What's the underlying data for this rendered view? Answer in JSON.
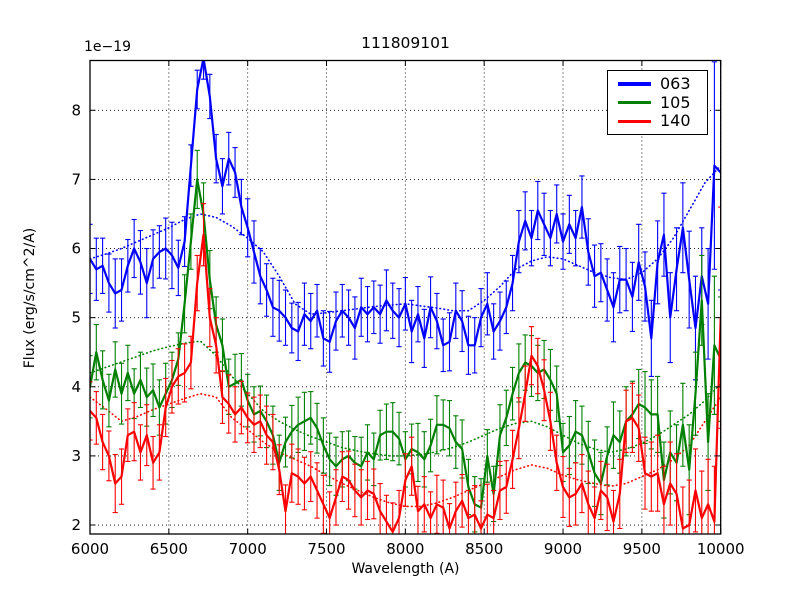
{
  "figure": {
    "title": "111809101",
    "xlabel": "Wavelength (A)",
    "ylabel": "Flux (erg/s/cm^2/A)",
    "offset_label": "1e−19",
    "background": "#ffffff"
  },
  "legend": {
    "position": "upper right",
    "entries": [
      {
        "label": "063",
        "color": "#0000ff"
      },
      {
        "label": "105",
        "color": "#008000"
      },
      {
        "label": "140",
        "color": "#ff0000"
      }
    ]
  },
  "chart_data": {
    "type": "line",
    "title": "111809101",
    "xlabel": "Wavelength (A)",
    "ylabel": "Flux (erg/s/cm^2/A)",
    "y_offset_factor": "1e-19",
    "xlim": [
      6000,
      10000
    ],
    "ylim": [
      1.87,
      8.72
    ],
    "xticks": [
      6000,
      6500,
      7000,
      7500,
      8000,
      8500,
      9000,
      9500,
      10000
    ],
    "yticks": [
      2,
      3,
      4,
      5,
      6,
      7,
      8
    ],
    "grid": true,
    "grid_style": "dotted",
    "series": [
      {
        "name": "063",
        "color": "#0000ff",
        "style": "solid",
        "x_start": 6000,
        "x_step": 40,
        "values": [
          5.85,
          5.7,
          5.75,
          5.5,
          5.35,
          5.4,
          5.75,
          6.0,
          5.8,
          5.5,
          5.85,
          5.95,
          6.0,
          5.9,
          5.72,
          6.1,
          7.2,
          8.3,
          8.75,
          8.2,
          7.3,
          6.9,
          7.3,
          7.1,
          6.6,
          6.3,
          5.95,
          5.6,
          5.4,
          5.15,
          5.1,
          5.0,
          4.85,
          4.8,
          5.05,
          4.95,
          5.1,
          4.7,
          4.65,
          4.95,
          5.1,
          5.0,
          4.85,
          5.15,
          5.05,
          5.15,
          5.05,
          5.25,
          5.1,
          5.0,
          5.2,
          4.8,
          5.05,
          4.7,
          5.15,
          4.95,
          4.6,
          4.65,
          5.1,
          4.95,
          4.6,
          4.6,
          5.0,
          5.2,
          4.8,
          4.95,
          5.15,
          5.5,
          6.1,
          6.4,
          6.15,
          6.55,
          6.35,
          6.15,
          6.5,
          6.1,
          6.35,
          6.15,
          6.6,
          5.95,
          5.6,
          5.65,
          5.4,
          5.15,
          5.55,
          5.55,
          5.3,
          5.8,
          5.45,
          4.7,
          5.8,
          6.2,
          5.0,
          5.7,
          6.3,
          5.55,
          4.85,
          5.6,
          5.2,
          7.2,
          7.1
        ],
        "err": [
          0.5,
          0.45,
          0.4,
          0.42,
          0.5,
          0.45,
          0.38,
          0.42,
          0.46,
          0.5,
          0.42,
          0.38,
          0.44,
          0.48,
          0.4,
          0.36,
          0.3,
          0.28,
          0.3,
          0.32,
          0.35,
          0.4,
          0.38,
          0.36,
          0.4,
          0.42,
          0.45,
          0.4,
          0.38,
          0.42,
          0.44,
          0.4,
          0.36,
          0.42,
          0.45,
          0.4,
          0.38,
          0.4,
          0.44,
          0.42,
          0.38,
          0.4,
          0.45,
          0.42,
          0.4,
          0.38,
          0.42,
          0.44,
          0.4,
          0.42,
          0.38,
          0.45,
          0.4,
          0.42,
          0.44,
          0.4,
          0.38,
          0.42,
          0.4,
          0.44,
          0.42,
          0.4,
          0.42,
          0.45,
          0.4,
          0.42,
          0.38,
          0.4,
          0.45,
          0.42,
          0.4,
          0.42,
          0.45,
          0.4,
          0.42,
          0.4,
          0.42,
          0.4,
          0.45,
          0.48,
          0.45,
          0.42,
          0.45,
          0.5,
          0.48,
          0.45,
          0.5,
          0.55,
          0.5,
          0.55,
          0.6,
          0.6,
          0.65,
          0.6,
          0.65,
          0.7,
          0.75,
          0.7,
          0.8,
          1.5,
          1.7
        ]
      },
      {
        "name": "105",
        "color": "#008000",
        "style": "solid",
        "x_start": 6000,
        "x_step": 40,
        "values": [
          4.0,
          4.5,
          4.1,
          3.8,
          4.25,
          3.9,
          4.2,
          3.9,
          4.1,
          3.85,
          3.95,
          3.7,
          3.9,
          4.1,
          4.4,
          5.2,
          6.1,
          7.0,
          6.5,
          5.55,
          4.9,
          4.6,
          4.0,
          4.05,
          4.1,
          3.8,
          3.6,
          3.65,
          3.5,
          3.3,
          2.9,
          3.2,
          3.35,
          3.45,
          3.5,
          3.55,
          3.4,
          3.15,
          2.95,
          2.85,
          2.95,
          3.0,
          2.9,
          2.85,
          3.05,
          2.95,
          3.3,
          3.35,
          3.35,
          3.25,
          2.95,
          3.1,
          3.05,
          2.95,
          3.15,
          3.45,
          3.45,
          3.4,
          3.2,
          3.1,
          2.55,
          2.3,
          2.25,
          3.0,
          2.45,
          3.3,
          3.55,
          3.9,
          4.2,
          4.35,
          4.3,
          4.2,
          4.25,
          4.1,
          3.9,
          3.05,
          3.15,
          3.35,
          3.3,
          3.05,
          2.75,
          2.6,
          3.0,
          3.3,
          3.2,
          3.5,
          3.6,
          3.75,
          3.7,
          3.6,
          3.6,
          2.65,
          3.05,
          2.9,
          3.45,
          2.8,
          3.9,
          5.25,
          3.2,
          4.6,
          4.4
        ],
        "err": [
          0.45,
          0.4,
          0.42,
          0.38,
          0.4,
          0.44,
          0.4,
          0.36,
          0.4,
          0.42,
          0.38,
          0.4,
          0.44,
          0.4,
          0.38,
          0.42,
          0.4,
          0.42,
          0.45,
          0.42,
          0.4,
          0.38,
          0.4,
          0.42,
          0.38,
          0.38,
          0.4,
          0.36,
          0.38,
          0.42,
          0.4,
          0.36,
          0.38,
          0.4,
          0.42,
          0.38,
          0.36,
          0.4,
          0.38,
          0.42,
          0.4,
          0.36,
          0.38,
          0.42,
          0.4,
          0.38,
          0.36,
          0.4,
          0.42,
          0.38,
          0.4,
          0.36,
          0.42,
          0.4,
          0.38,
          0.42,
          0.36,
          0.4,
          0.38,
          0.42,
          0.4,
          0.4,
          0.42,
          0.38,
          0.4,
          0.44,
          0.4,
          0.38,
          0.42,
          0.4,
          0.44,
          0.4,
          0.42,
          0.44,
          0.4,
          0.42,
          0.42,
          0.45,
          0.42,
          0.45,
          0.48,
          0.45,
          0.42,
          0.48,
          0.45,
          0.5,
          0.48,
          0.5,
          0.52,
          0.5,
          0.55,
          0.55,
          0.6,
          0.55,
          0.6,
          0.65,
          0.6,
          0.65,
          0.7,
          1.0,
          0.9
        ]
      },
      {
        "name": "140",
        "color": "#ff0000",
        "style": "solid",
        "x_start": 6000,
        "x_step": 40,
        "values": [
          3.65,
          3.55,
          3.2,
          3.0,
          2.6,
          2.7,
          3.3,
          3.35,
          3.05,
          3.3,
          2.9,
          3.05,
          3.7,
          4.0,
          4.15,
          4.2,
          4.35,
          5.5,
          6.2,
          5.0,
          4.6,
          3.85,
          3.75,
          3.6,
          3.7,
          3.55,
          3.45,
          3.5,
          3.3,
          3.2,
          2.8,
          2.2,
          2.75,
          2.7,
          2.6,
          2.7,
          2.5,
          2.3,
          2.1,
          2.4,
          2.7,
          2.65,
          2.5,
          2.4,
          2.5,
          2.45,
          2.2,
          2.05,
          1.9,
          2.1,
          2.65,
          2.85,
          2.2,
          2.3,
          2.1,
          2.3,
          2.25,
          1.95,
          2.2,
          2.35,
          2.1,
          2.15,
          1.95,
          2.15,
          2.1,
          2.5,
          2.55,
          2.95,
          3.4,
          3.9,
          4.45,
          4.3,
          3.95,
          3.5,
          2.9,
          2.55,
          2.4,
          2.45,
          2.6,
          2.3,
          2.1,
          2.5,
          2.4,
          2.05,
          2.45,
          3.5,
          3.55,
          3.4,
          2.75,
          2.7,
          2.75,
          2.3,
          2.6,
          2.45,
          1.95,
          2.0,
          2.5,
          2.1,
          2.3,
          2.05,
          5.0
        ],
        "err": [
          0.42,
          0.38,
          0.4,
          0.36,
          0.42,
          0.4,
          0.38,
          0.42,
          0.4,
          0.44,
          0.38,
          0.4,
          0.42,
          0.38,
          0.4,
          0.42,
          0.38,
          0.4,
          0.45,
          0.42,
          0.4,
          0.38,
          0.42,
          0.4,
          0.38,
          0.36,
          0.4,
          0.38,
          0.42,
          0.4,
          0.36,
          0.38,
          0.42,
          0.4,
          0.38,
          0.36,
          0.4,
          0.42,
          0.38,
          0.4,
          0.36,
          0.42,
          0.38,
          0.4,
          0.42,
          0.36,
          0.4,
          0.38,
          0.42,
          0.4,
          0.38,
          0.42,
          0.36,
          0.4,
          0.38,
          0.42,
          0.4,
          0.36,
          0.42,
          0.38,
          0.4,
          0.42,
          0.4,
          0.44,
          0.4,
          0.42,
          0.38,
          0.42,
          0.44,
          0.4,
          0.42,
          0.4,
          0.44,
          0.42,
          0.4,
          0.44,
          0.42,
          0.45,
          0.42,
          0.48,
          0.45,
          0.42,
          0.48,
          0.45,
          0.5,
          0.45,
          0.5,
          0.48,
          0.52,
          0.5,
          0.55,
          0.55,
          0.6,
          0.58,
          0.6,
          0.65,
          0.6,
          0.68,
          0.65,
          0.8,
          1.6
        ]
      },
      {
        "name": "063-model",
        "color": "#0000ff",
        "style": "dotted",
        "x_start": 6000,
        "x_step": 100,
        "values": [
          5.85,
          5.92,
          6.0,
          6.1,
          6.2,
          6.3,
          6.42,
          6.5,
          6.45,
          6.32,
          6.15,
          5.95,
          5.6,
          5.2,
          5.05,
          5.07,
          5.1,
          5.13,
          5.16,
          5.18,
          5.2,
          5.17,
          5.14,
          5.1,
          5.1,
          5.25,
          5.45,
          5.7,
          5.82,
          5.88,
          5.85,
          5.75,
          5.65,
          5.58,
          5.55,
          5.65,
          5.85,
          6.15,
          6.55,
          6.95,
          7.2
        ]
      },
      {
        "name": "105-model",
        "color": "#008000",
        "style": "dotted",
        "x_start": 6000,
        "x_step": 100,
        "values": [
          4.2,
          4.28,
          4.36,
          4.44,
          4.52,
          4.58,
          4.63,
          4.66,
          4.45,
          4.15,
          3.9,
          3.65,
          3.5,
          3.38,
          3.28,
          3.2,
          3.12,
          3.07,
          3.03,
          3.0,
          3.0,
          3.02,
          3.06,
          3.12,
          3.2,
          3.3,
          3.4,
          3.47,
          3.5,
          3.42,
          3.3,
          3.18,
          3.1,
          3.05,
          3.1,
          3.18,
          3.3,
          3.45,
          3.6,
          3.8,
          4.05
        ]
      },
      {
        "name": "140-model",
        "color": "#ff0000",
        "style": "dotted",
        "x_start": 6000,
        "x_step": 100,
        "values": [
          3.85,
          3.68,
          3.5,
          3.57,
          3.67,
          3.75,
          3.83,
          3.9,
          3.85,
          3.55,
          3.38,
          3.2,
          3.05,
          2.95,
          2.85,
          2.72,
          2.6,
          2.5,
          2.4,
          2.32,
          2.27,
          2.27,
          2.32,
          2.4,
          2.5,
          2.6,
          2.7,
          2.8,
          2.87,
          2.82,
          2.72,
          2.65,
          2.6,
          2.56,
          2.6,
          2.7,
          2.8,
          2.95,
          3.15,
          3.5,
          3.85
        ]
      }
    ]
  }
}
